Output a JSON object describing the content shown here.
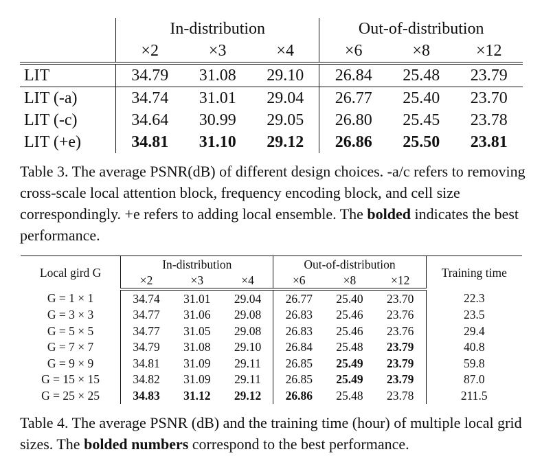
{
  "table3": {
    "group_in": "In-distribution",
    "group_out": "Out-of-distribution",
    "scales": [
      "×2",
      "×3",
      "×4",
      "×6",
      "×8",
      "×12"
    ],
    "rows": [
      {
        "label": "LIT",
        "values": [
          "34.79",
          "31.08",
          "29.10",
          "26.84",
          "25.48",
          "23.79"
        ],
        "bold": [
          false,
          false,
          false,
          false,
          false,
          false
        ]
      },
      {
        "label": "LIT (-a)",
        "values": [
          "34.74",
          "31.01",
          "29.04",
          "26.77",
          "25.40",
          "23.70"
        ],
        "bold": [
          false,
          false,
          false,
          false,
          false,
          false
        ]
      },
      {
        "label": "LIT (-c)",
        "values": [
          "34.64",
          "30.99",
          "29.05",
          "26.80",
          "25.45",
          "23.78"
        ],
        "bold": [
          false,
          false,
          false,
          false,
          false,
          false
        ]
      },
      {
        "label": "LIT (+e)",
        "values": [
          "34.81",
          "31.10",
          "29.12",
          "26.86",
          "25.50",
          "23.81"
        ],
        "bold": [
          true,
          true,
          true,
          true,
          true,
          true
        ]
      }
    ],
    "caption_pre": "Table 3. The average PSNR(dB) of different design choices. -a/c refers to removing cross-scale local attention block, frequency encoding block, and cell size correspondingly. +e refers to adding local ensemble. The ",
    "caption_bold": "bolded",
    "caption_post": " indicates the best performance."
  },
  "table4": {
    "col_label": "Local gird G",
    "group_in": "In-distribution",
    "group_out": "Out-of-distribution",
    "col_time": "Training time",
    "scales": [
      "×2",
      "×3",
      "×4",
      "×6",
      "×8",
      "×12"
    ],
    "rows": [
      {
        "label": "G = 1 × 1",
        "values": [
          "34.74",
          "31.01",
          "29.04",
          "26.77",
          "25.40",
          "23.70"
        ],
        "time": "22.3",
        "bold": [
          false,
          false,
          false,
          false,
          false,
          false
        ]
      },
      {
        "label": "G = 3 × 3",
        "values": [
          "34.77",
          "31.06",
          "29.08",
          "26.83",
          "25.46",
          "23.76"
        ],
        "time": "23.5",
        "bold": [
          false,
          false,
          false,
          false,
          false,
          false
        ]
      },
      {
        "label": "G = 5 × 5",
        "values": [
          "34.77",
          "31.05",
          "29.08",
          "26.83",
          "25.46",
          "23.76"
        ],
        "time": "29.4",
        "bold": [
          false,
          false,
          false,
          false,
          false,
          false
        ]
      },
      {
        "label": "G = 7 × 7",
        "values": [
          "34.79",
          "31.08",
          "29.10",
          "26.84",
          "25.48",
          "23.79"
        ],
        "time": "40.8",
        "bold": [
          false,
          false,
          false,
          false,
          false,
          true
        ]
      },
      {
        "label": "G = 9 × 9",
        "values": [
          "34.81",
          "31.09",
          "29.11",
          "26.85",
          "25.49",
          "23.79"
        ],
        "time": "59.8",
        "bold": [
          false,
          false,
          false,
          false,
          true,
          true
        ]
      },
      {
        "label": "G = 15 × 15",
        "values": [
          "34.82",
          "31.09",
          "29.11",
          "26.85",
          "25.49",
          "23.79"
        ],
        "time": "87.0",
        "bold": [
          false,
          false,
          false,
          false,
          true,
          true
        ]
      },
      {
        "label": "G = 25 × 25",
        "values": [
          "34.83",
          "31.12",
          "29.12",
          "26.86",
          "25.48",
          "23.78"
        ],
        "time": "211.5",
        "bold": [
          true,
          true,
          true,
          true,
          false,
          false
        ]
      }
    ],
    "caption_pre": "Table 4. The average PSNR (dB) and the training time (hour) of multiple local grid sizes. The ",
    "caption_bold": "bolded numbers",
    "caption_post": " correspond to the best performance."
  }
}
